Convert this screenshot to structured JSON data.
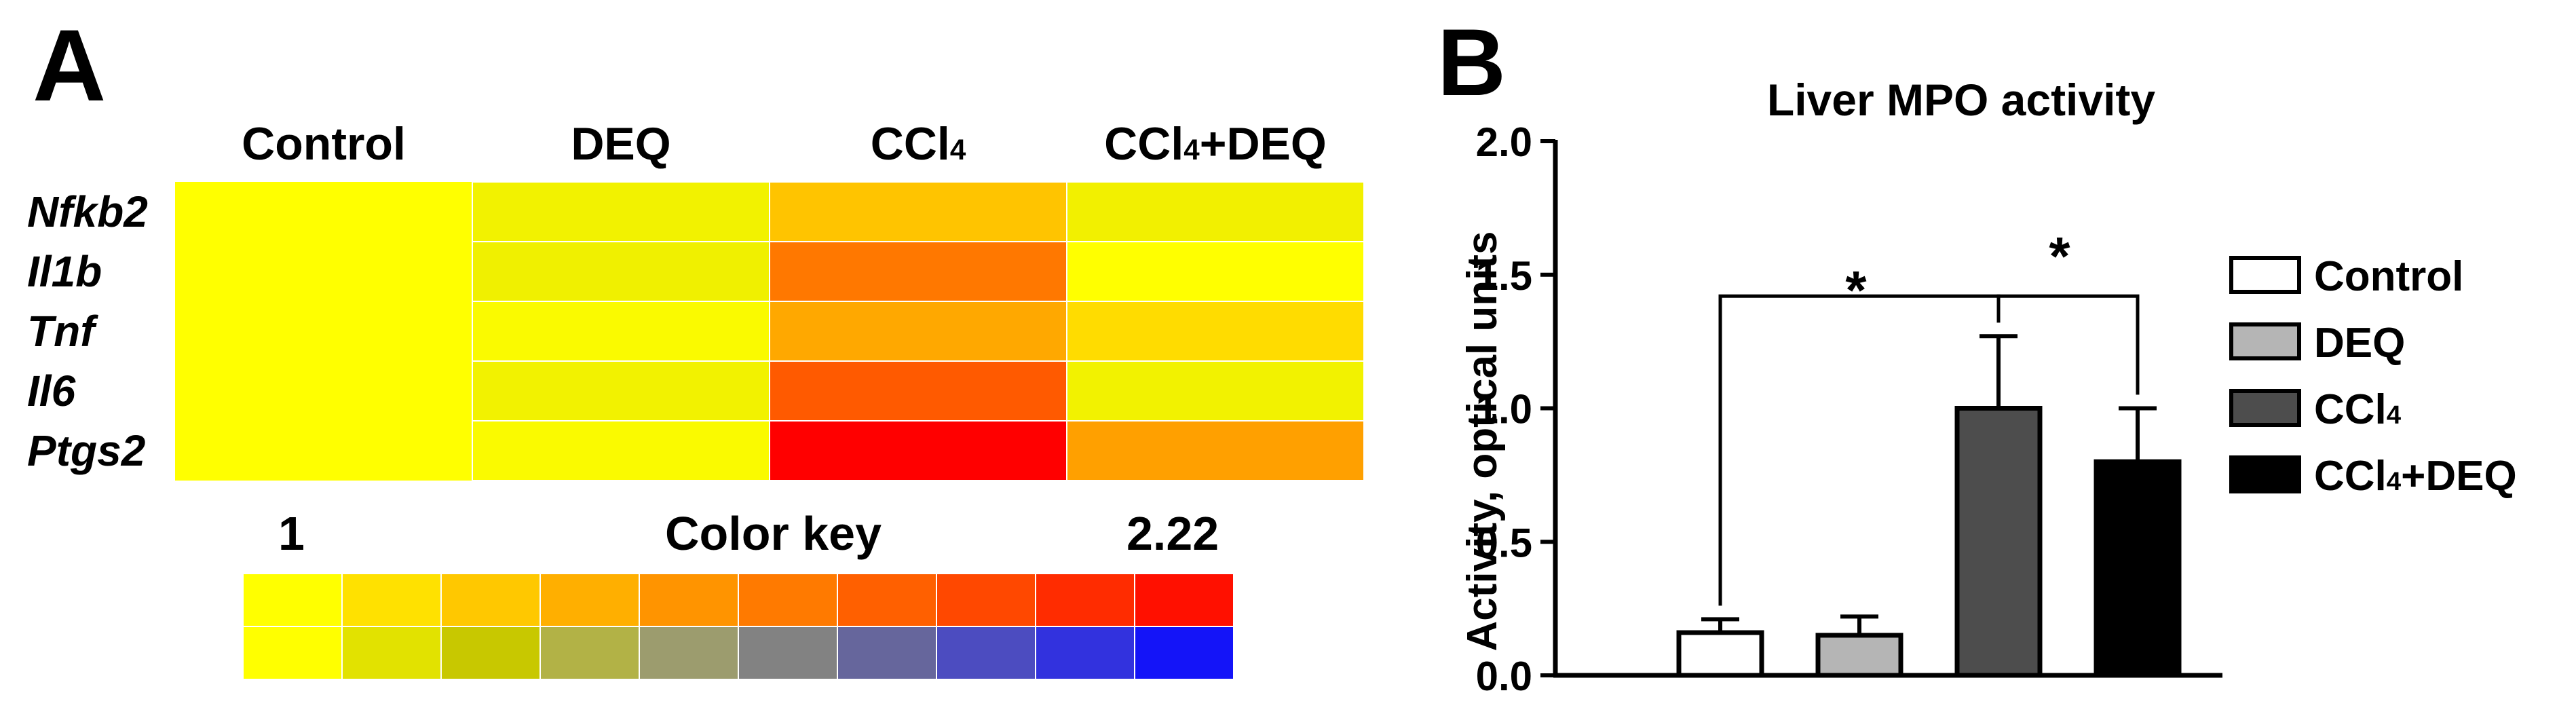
{
  "panel_a": {
    "letter": "A",
    "color_key": {
      "title": "Color key",
      "min_label": "1",
      "max_label": "2.22",
      "row1_colors": [
        "#FFFF00",
        "#FFE100",
        "#FFC800",
        "#FFAF00",
        "#FF9400",
        "#FF7A00",
        "#FF6000",
        "#FF4800",
        "#FF2C00",
        "#FF1000"
      ],
      "row2_colors": [
        "#FFFF00",
        "#E2E200",
        "#C8C800",
        "#B2B246",
        "#9C9C6E",
        "#828282",
        "#66669C",
        "#4C4CC0",
        "#3232DE",
        "#1414F8"
      ]
    }
  },
  "panel_b": {
    "letter": "B",
    "stars": [
      "*",
      "*"
    ]
  },
  "chart_data": [
    {
      "type": "heatmap",
      "columns": [
        {
          "main": "Control",
          "sub": "",
          "rest": ""
        },
        {
          "main": "DEQ",
          "sub": "",
          "rest": ""
        },
        {
          "main": "CCl",
          "sub": "4",
          "rest": ""
        },
        {
          "main": "CCl",
          "sub": "4",
          "rest": "+DEQ"
        }
      ],
      "rows": [
        "Nfkb2",
        "Il1b",
        "Tnf",
        "Il6",
        "Ptgs2"
      ],
      "values": [
        [
          1.0,
          1.08,
          1.45,
          1.1
        ],
        [
          1.0,
          1.1,
          1.85,
          1.02
        ],
        [
          1.0,
          1.03,
          1.6,
          1.25
        ],
        [
          1.0,
          1.1,
          2.0,
          1.1
        ],
        [
          1.0,
          1.05,
          2.22,
          1.6
        ]
      ],
      "colors": [
        [
          "#FFFF00",
          "#F2F200",
          "#FFC400",
          "#F2F000"
        ],
        [
          "#FFFF00",
          "#F0F000",
          "#FF7800",
          "#FFFF00"
        ],
        [
          "#FFFF00",
          "#FAFA00",
          "#FFA800",
          "#FFDC00"
        ],
        [
          "#FFFF00",
          "#F2F200",
          "#FF5A00",
          "#F2F200"
        ],
        [
          "#FFFF00",
          "#FAFA00",
          "#FF0000",
          "#FFA000"
        ]
      ],
      "scale_range": [
        1,
        2.22
      ]
    },
    {
      "type": "bar",
      "title": "Liver MPO activity",
      "ylabel": "Activity, optical units",
      "xlabel": "",
      "ylim": [
        0,
        2.0
      ],
      "yticks": [
        "0.0",
        "0.5",
        "1.0",
        "1.5",
        "2.0"
      ],
      "legend_position": "right",
      "categories": [
        {
          "main": "Control",
          "sub": "",
          "rest": ""
        },
        {
          "main": "DEQ",
          "sub": "",
          "rest": ""
        },
        {
          "main": "CCl",
          "sub": "4",
          "rest": ""
        },
        {
          "main": "CCl",
          "sub": "4",
          "rest": "+DEQ"
        }
      ],
      "values": [
        0.16,
        0.15,
        1.0,
        0.8
      ],
      "errors": [
        0.05,
        0.07,
        0.27,
        0.2
      ],
      "fills": [
        "#FFFFFF",
        "#B5B5B5",
        "#4D4D4D",
        "#000000"
      ],
      "significance": [
        {
          "from": 0,
          "to": 2,
          "label": "*",
          "level": 1.42
        },
        {
          "from": 2,
          "to": 3,
          "label": "*",
          "level": 1.42
        }
      ]
    }
  ]
}
